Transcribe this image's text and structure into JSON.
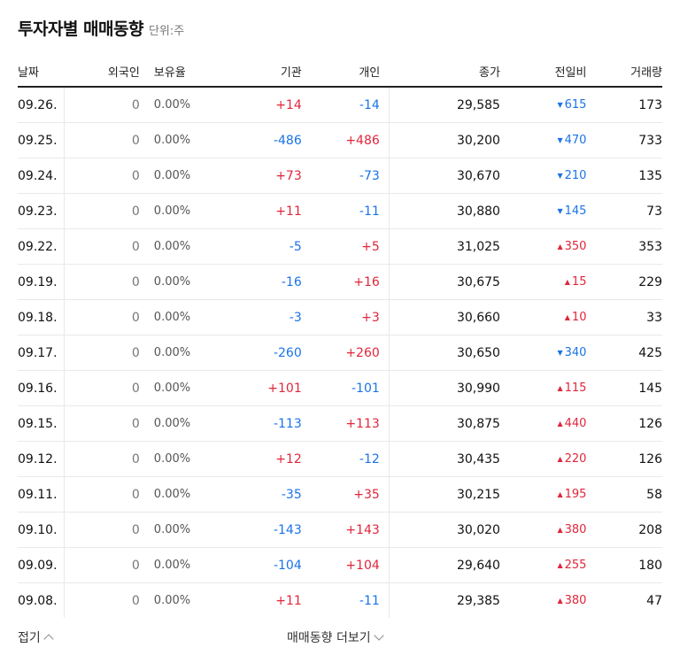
{
  "header": {
    "title": "투자자별 매매동향",
    "unit": "단위:주"
  },
  "columns": {
    "date": "날짜",
    "foreign": "외국인",
    "ratio": "보유율",
    "institution": "기관",
    "individual": "개인",
    "close": "종가",
    "change": "전일비",
    "volume": "거래량"
  },
  "rows": [
    {
      "date": "09.26.",
      "foreign": "0",
      "ratio": "0.00%",
      "institution": "+14",
      "individual": "-14",
      "close": "29,585",
      "change": "615",
      "dir": "down",
      "volume": "173"
    },
    {
      "date": "09.25.",
      "foreign": "0",
      "ratio": "0.00%",
      "institution": "-486",
      "individual": "+486",
      "close": "30,200",
      "change": "470",
      "dir": "down",
      "volume": "733"
    },
    {
      "date": "09.24.",
      "foreign": "0",
      "ratio": "0.00%",
      "institution": "+73",
      "individual": "-73",
      "close": "30,670",
      "change": "210",
      "dir": "down",
      "volume": "135"
    },
    {
      "date": "09.23.",
      "foreign": "0",
      "ratio": "0.00%",
      "institution": "+11",
      "individual": "-11",
      "close": "30,880",
      "change": "145",
      "dir": "down",
      "volume": "73"
    },
    {
      "date": "09.22.",
      "foreign": "0",
      "ratio": "0.00%",
      "institution": "-5",
      "individual": "+5",
      "close": "31,025",
      "change": "350",
      "dir": "up",
      "volume": "353"
    },
    {
      "date": "09.19.",
      "foreign": "0",
      "ratio": "0.00%",
      "institution": "-16",
      "individual": "+16",
      "close": "30,675",
      "change": "15",
      "dir": "up",
      "volume": "229"
    },
    {
      "date": "09.18.",
      "foreign": "0",
      "ratio": "0.00%",
      "institution": "-3",
      "individual": "+3",
      "close": "30,660",
      "change": "10",
      "dir": "up",
      "volume": "33"
    },
    {
      "date": "09.17.",
      "foreign": "0",
      "ratio": "0.00%",
      "institution": "-260",
      "individual": "+260",
      "close": "30,650",
      "change": "340",
      "dir": "down",
      "volume": "425"
    },
    {
      "date": "09.16.",
      "foreign": "0",
      "ratio": "0.00%",
      "institution": "+101",
      "individual": "-101",
      "close": "30,990",
      "change": "115",
      "dir": "up",
      "volume": "145"
    },
    {
      "date": "09.15.",
      "foreign": "0",
      "ratio": "0.00%",
      "institution": "-113",
      "individual": "+113",
      "close": "30,875",
      "change": "440",
      "dir": "up",
      "volume": "126"
    },
    {
      "date": "09.12.",
      "foreign": "0",
      "ratio": "0.00%",
      "institution": "+12",
      "individual": "-12",
      "close": "30,435",
      "change": "220",
      "dir": "up",
      "volume": "126"
    },
    {
      "date": "09.11.",
      "foreign": "0",
      "ratio": "0.00%",
      "institution": "-35",
      "individual": "+35",
      "close": "30,215",
      "change": "195",
      "dir": "up",
      "volume": "58"
    },
    {
      "date": "09.10.",
      "foreign": "0",
      "ratio": "0.00%",
      "institution": "-143",
      "individual": "+143",
      "close": "30,020",
      "change": "380",
      "dir": "up",
      "volume": "208"
    },
    {
      "date": "09.09.",
      "foreign": "0",
      "ratio": "0.00%",
      "institution": "-104",
      "individual": "+104",
      "close": "29,640",
      "change": "255",
      "dir": "up",
      "volume": "180"
    },
    {
      "date": "09.08.",
      "foreign": "0",
      "ratio": "0.00%",
      "institution": "+11",
      "individual": "-11",
      "close": "29,385",
      "change": "380",
      "dir": "up",
      "volume": "47"
    }
  ],
  "footer": {
    "collapse_label": "접기",
    "more_label": "매매동향 더보기"
  },
  "colors": {
    "positive": "#e0263b",
    "negative": "#1a73e8"
  }
}
